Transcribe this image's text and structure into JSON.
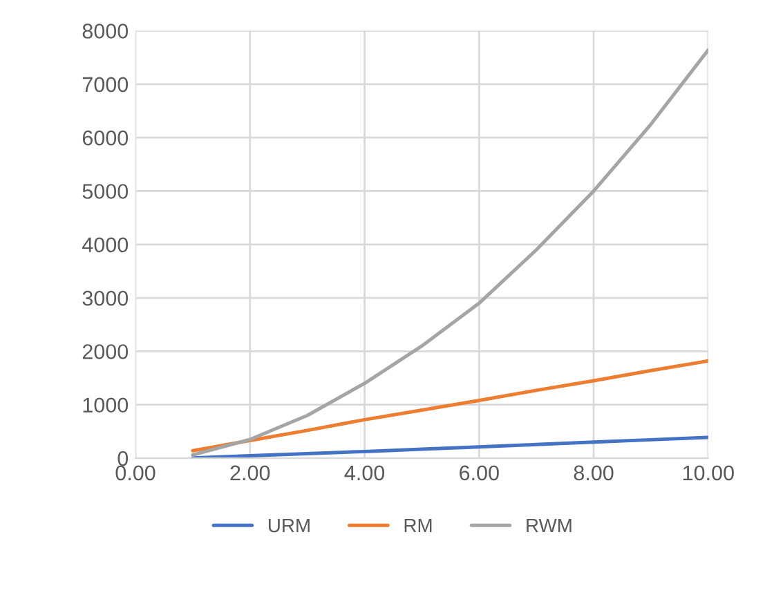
{
  "chart_data": {
    "type": "line",
    "x": [
      1,
      2,
      3,
      4,
      5,
      6,
      7,
      8,
      9,
      10
    ],
    "series": [
      {
        "name": "URM",
        "color": "#4472c4",
        "values": [
          5,
          45,
          85,
          125,
          170,
          210,
          255,
          300,
          345,
          390
        ]
      },
      {
        "name": "RM",
        "color": "#ed7d31",
        "values": [
          140,
          330,
          520,
          720,
          900,
          1080,
          1270,
          1450,
          1640,
          1820
        ]
      },
      {
        "name": "RWM",
        "color": "#a5a5a5",
        "values": [
          60,
          350,
          800,
          1400,
          2100,
          2900,
          3900,
          5000,
          6250,
          7640
        ]
      }
    ],
    "xlim": [
      0,
      10
    ],
    "xticks": [
      {
        "value": 0,
        "label": "0.00"
      },
      {
        "value": 2,
        "label": "2.00"
      },
      {
        "value": 4,
        "label": "4.00"
      },
      {
        "value": 6,
        "label": "6.00"
      },
      {
        "value": 8,
        "label": "8.00"
      },
      {
        "value": 10,
        "label": "10.00"
      }
    ],
    "ylim": [
      0,
      8000
    ],
    "yticks": [
      0,
      1000,
      2000,
      3000,
      4000,
      5000,
      6000,
      7000,
      8000
    ],
    "grid": true,
    "legend": "bottom",
    "marker": "none",
    "line_style": "solid"
  }
}
